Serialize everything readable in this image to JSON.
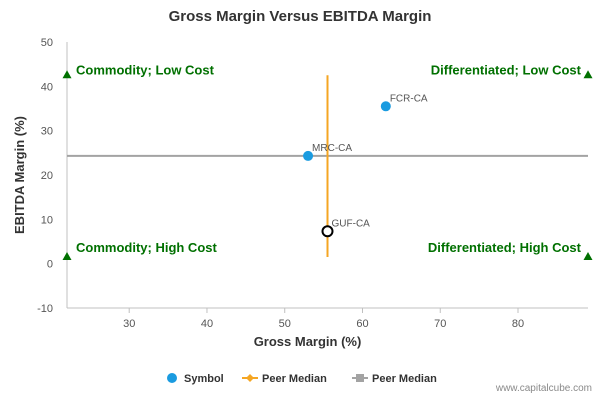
{
  "chart_data": {
    "type": "scatter",
    "title": "Gross Margin Versus EBITDA Margin",
    "xlabel": "Gross Margin (%)",
    "ylabel": "EBITDA Margin (%)",
    "xlim": [
      22,
      89
    ],
    "ylim": [
      -10,
      50
    ],
    "xticks": [
      30,
      40,
      50,
      60,
      70,
      80
    ],
    "yticks": [
      -10,
      0,
      10,
      20,
      30,
      40,
      50
    ],
    "grid": false,
    "points": [
      {
        "label": "FCR-CA",
        "x": 63,
        "y": 35.5,
        "style": "filled"
      },
      {
        "label": "MRC-CA",
        "x": 53,
        "y": 24.3,
        "style": "filled"
      },
      {
        "label": "GUF-CA",
        "x": 55.5,
        "y": 7.3,
        "style": "hollow"
      }
    ],
    "peer_median_x": {
      "name": "Peer Median",
      "x": 55.5,
      "y_range": [
        1.5,
        42.5
      ]
    },
    "peer_median_y": {
      "name": "Peer Median",
      "y": 24.3,
      "x_range": [
        22,
        89
      ]
    },
    "quadrant_labels": [
      {
        "text": "Commodity; Low Cost",
        "position": "top-left"
      },
      {
        "text": "Differentiated; Low Cost",
        "position": "top-right"
      },
      {
        "text": "Commodity; High Cost",
        "position": "bottom-left"
      },
      {
        "text": "Differentiated; High Cost",
        "position": "bottom-right"
      }
    ],
    "corner_markers": [
      {
        "x": 22,
        "y": 42.5
      },
      {
        "x": 89,
        "y": 42.5
      },
      {
        "x": 22,
        "y": 1.5
      },
      {
        "x": 89,
        "y": 1.5
      }
    ],
    "legend": {
      "placement": "bottom-center",
      "entries": [
        {
          "label": "Symbol",
          "marker": "circle"
        },
        {
          "label": "Peer Median",
          "marker": "line-diamond"
        },
        {
          "label": "Peer Median",
          "marker": "line-square"
        }
      ]
    }
  },
  "colors": {
    "point": "#1a9be0",
    "point_hollow_stroke": "#000000",
    "median_x": "#f5a623",
    "median_y": "#a3a3a3",
    "quadrant_text": "#007000",
    "marker": "#007000",
    "axis": "#c0c0c0",
    "tick_text": "#555555",
    "label_text": "#333333"
  },
  "watermark": "www.capitalcube.com"
}
